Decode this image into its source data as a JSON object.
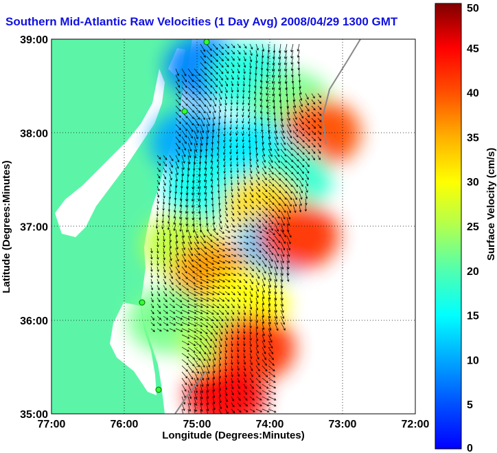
{
  "title": "Southern Mid-Atlantic Raw Velocities (1 Day Avg) 2008/04/29 1300 GMT",
  "colors": {
    "land": "#5cf5a8",
    "water_in_bay": "#ffffff",
    "accent_title": "#1010e0"
  },
  "chart_data": {
    "type": "heatmap",
    "xlabel": "Longitude (Degrees:Minutes)",
    "ylabel": "Latitude (Degrees:Minutes)",
    "x_ticks": [
      "77:00",
      "76:00",
      "75:00",
      "74:00",
      "73:00",
      "72:00"
    ],
    "y_ticks": [
      "39:00",
      "38:00",
      "37:00",
      "36:00",
      "35:00"
    ],
    "xlim": [
      -77,
      -72
    ],
    "ylim": [
      35,
      39
    ],
    "grid": true,
    "colorbar": {
      "label": "Surface Velocity (cm/s)",
      "min": 0,
      "max": 50,
      "ticks": [
        "50",
        "45",
        "40",
        "35",
        "30",
        "25",
        "20",
        "15",
        "10",
        "5",
        "0"
      ]
    },
    "velocity_regions": [
      {
        "lon": -74.9,
        "lat": 38.7,
        "speed": 8
      },
      {
        "lon": -74.3,
        "lat": 38.6,
        "speed": 17
      },
      {
        "lon": -73.7,
        "lat": 38.3,
        "speed": 22
      },
      {
        "lon": -73.3,
        "lat": 38.0,
        "speed": 40
      },
      {
        "lon": -75.1,
        "lat": 37.9,
        "speed": 10
      },
      {
        "lon": -74.2,
        "lat": 37.8,
        "speed": 14
      },
      {
        "lon": -73.7,
        "lat": 37.5,
        "speed": 18
      },
      {
        "lon": -74.9,
        "lat": 37.4,
        "speed": 16
      },
      {
        "lon": -74.1,
        "lat": 37.2,
        "speed": 32
      },
      {
        "lon": -73.9,
        "lat": 36.8,
        "speed": 12
      },
      {
        "lon": -73.6,
        "lat": 36.9,
        "speed": 42
      },
      {
        "lon": -75.2,
        "lat": 36.8,
        "speed": 26
      },
      {
        "lon": -74.8,
        "lat": 36.5,
        "speed": 36
      },
      {
        "lon": -74.3,
        "lat": 36.2,
        "speed": 30
      },
      {
        "lon": -75.4,
        "lat": 36.0,
        "speed": 22
      },
      {
        "lon": -74.7,
        "lat": 35.8,
        "speed": 25
      },
      {
        "lon": -74.2,
        "lat": 35.7,
        "speed": 42
      },
      {
        "lon": -74.6,
        "lat": 35.2,
        "speed": 45
      }
    ]
  }
}
